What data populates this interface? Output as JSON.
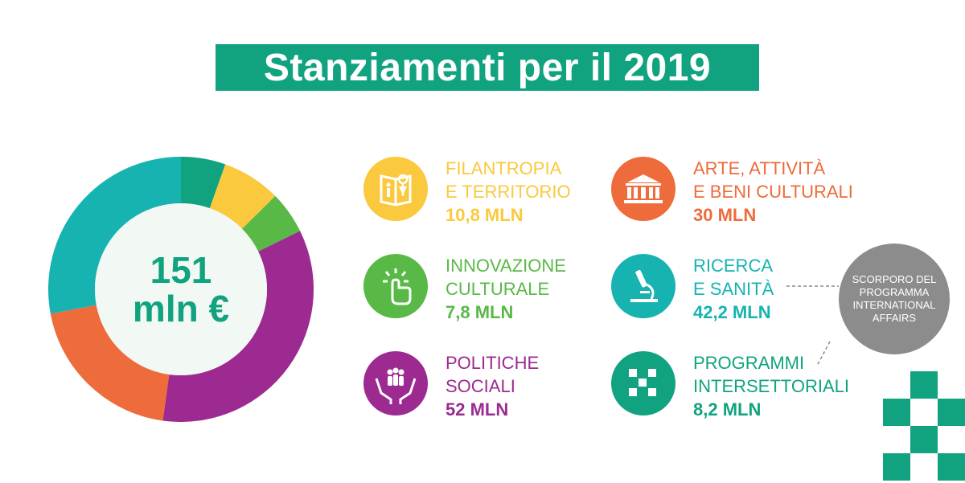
{
  "title": "Stanziamenti per il 2019",
  "total": {
    "line1": "151",
    "line2": "mln €"
  },
  "chart_data": {
    "type": "pie",
    "unit": "MLN",
    "total": 151,
    "slices": [
      {
        "label": "PROGRAMMI INTERSETTORIALI",
        "value": 8.2,
        "color": "#11a37f"
      },
      {
        "label": "FILANTROPIA E TERRITORIO",
        "value": 10.8,
        "color": "#fbc93e"
      },
      {
        "label": "INNOVAZIONE CULTURALE",
        "value": 7.8,
        "color": "#58b947"
      },
      {
        "label": "POLITICHE SOCIALI",
        "value": 52,
        "color": "#9c2a91"
      },
      {
        "label": "ARTE, ATTIVITÀ E BENI CULTURALI",
        "value": 30,
        "color": "#ee6b3b"
      },
      {
        "label": "RICERCA E SANITÀ",
        "value": 42.2,
        "color": "#16b3b1"
      }
    ]
  },
  "categories": [
    {
      "line1": "FILANTROPIA",
      "line2": "E TERRITORIO",
      "amount": "10,8 MLN",
      "color": "#fbc93e",
      "icon": "map-person-pin-icon"
    },
    {
      "line1": "INNOVAZIONE",
      "line2": "CULTURALE",
      "amount": "7,8 MLN",
      "color": "#58b947",
      "icon": "touch-hand-icon"
    },
    {
      "line1": "POLITICHE",
      "line2": "SOCIALI",
      "amount": "52 MLN",
      "color": "#9c2a91",
      "icon": "hands-family-icon"
    },
    {
      "line1": "ARTE, ATTIVITÀ",
      "line2": "E BENI CULTURALI",
      "amount": "30 MLN",
      "color": "#ee6b3b",
      "icon": "museum-building-icon"
    },
    {
      "line1": "RICERCA",
      "line2": "E SANITÀ",
      "amount": "42,2 MLN",
      "color": "#16b3b1",
      "icon": "microscope-icon"
    },
    {
      "line1": "PROGRAMMI",
      "line2": "INTERSETTORIALI",
      "amount": "8,2 MLN",
      "color": "#11a37f",
      "icon": "checker-pattern-icon"
    }
  ],
  "note": {
    "text": "SCORPORO DEL PROGRAMMA INTERNATIONAL AFFAIRS"
  },
  "accent_color": "#11a37f"
}
